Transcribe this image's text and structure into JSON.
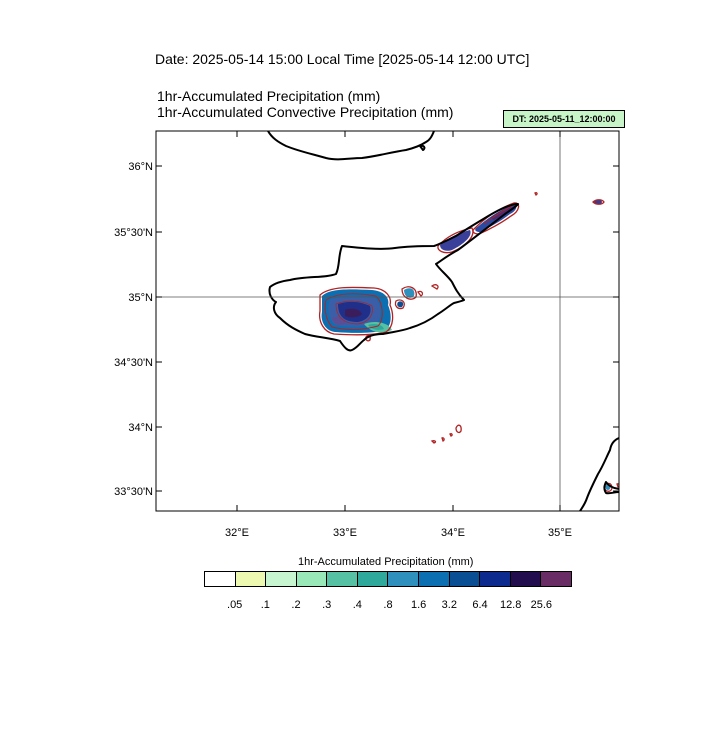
{
  "header": {
    "date_title": "Date: 2025-05-14  15:00 Local Time [2025-05-14  12:00 UTC]",
    "field_line_1": "1hr-Accumulated Precipitation   (mm)",
    "field_line_2": "1hr-Accumulated Convective Precipitation   (mm)",
    "dt_badge": "DT: 2025-05-11_12:00:00"
  },
  "map": {
    "lat_ticks": [
      "36°N",
      "35°30'N",
      "35°N",
      "34°30'N",
      "34°N",
      "33°30'N"
    ],
    "lon_ticks": [
      "32°E",
      "33°E",
      "34°E",
      "35°E"
    ],
    "reference_lines": {
      "latitude": "35°N",
      "longitude": "35°E"
    },
    "coastline_color": "#000000",
    "convective_contour_color": "#b22222"
  },
  "colorbar": {
    "title": "1hr-Accumulated Precipitation  (mm)",
    "colors": [
      "#ffffff",
      "#edf8b1",
      "#c7f5cf",
      "#98e8b8",
      "#56c1a3",
      "#2ea99c",
      "#3090bd",
      "#0c6fb2",
      "#0a4f93",
      "#0d2a8e",
      "#220d4f",
      "#6a2c64"
    ],
    "levels": [
      ".05",
      ".1",
      ".2",
      ".3",
      ".4",
      ".8",
      "1.6",
      "3.2",
      "6.4",
      "12.8",
      "25.6"
    ]
  }
}
